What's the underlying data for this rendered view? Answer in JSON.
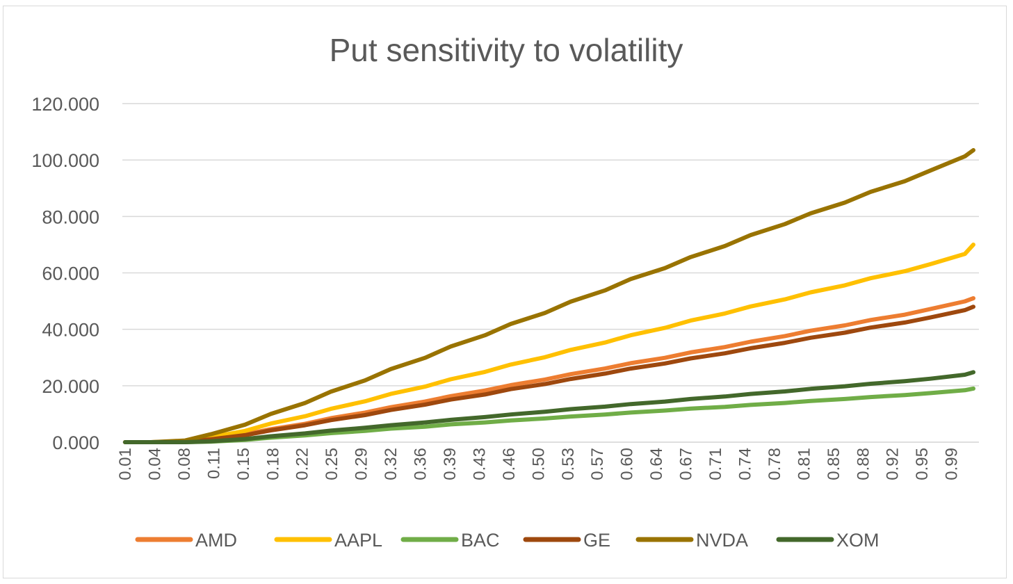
{
  "chart_data": {
    "type": "line",
    "title": "Put sensitivity to volatility",
    "xlabel": "",
    "ylabel": "",
    "ylim": [
      0,
      120
    ],
    "y_ticks": [
      "0.000",
      "20.000",
      "40.000",
      "60.000",
      "80.000",
      "100.000",
      "120.000"
    ],
    "y_tick_values": [
      0,
      20,
      40,
      60,
      80,
      100,
      120
    ],
    "x_ticks": [
      "0.01",
      "0.04",
      "0.08",
      "0.11",
      "0.15",
      "0.18",
      "0.22",
      "0.25",
      "0.29",
      "0.32",
      "0.36",
      "0.39",
      "0.43",
      "0.46",
      "0.50",
      "0.53",
      "0.57",
      "0.60",
      "0.64",
      "0.67",
      "0.71",
      "0.74",
      "0.78",
      "0.81",
      "0.85",
      "0.88",
      "0.92",
      "0.95",
      "0.99"
    ],
    "grid": "horizontal",
    "legend_position": "bottom",
    "x": [
      0.01,
      0.04,
      0.08,
      0.11,
      0.15,
      0.18,
      0.22,
      0.25,
      0.29,
      0.32,
      0.36,
      0.39,
      0.43,
      0.46,
      0.5,
      0.53,
      0.57,
      0.6,
      0.64,
      0.67,
      0.71,
      0.74,
      0.78,
      0.81,
      0.85,
      0.88,
      0.92,
      0.95,
      0.99,
      1.0
    ],
    "series": [
      {
        "name": "AMD",
        "color": "#ED7D31",
        "values": [
          0,
          0,
          0.1,
          1.2,
          2.8,
          4.6,
          6.5,
          8.5,
          10.5,
          12.4,
          14.4,
          16.3,
          18.3,
          20.2,
          22.2,
          24.1,
          26.1,
          28.0,
          29.9,
          31.8,
          33.7,
          35.6,
          37.6,
          39.5,
          41.4,
          43.3,
          45.2,
          47.2,
          49.9,
          51.0
        ]
      },
      {
        "name": "AAPL",
        "color": "#FFC000",
        "values": [
          0,
          0,
          0.3,
          1.8,
          4.0,
          6.6,
          9.2,
          11.8,
          14.5,
          17.1,
          19.7,
          22.3,
          24.9,
          27.5,
          30.1,
          32.7,
          35.3,
          37.9,
          40.5,
          43.1,
          45.6,
          48.1,
          50.6,
          53.1,
          55.6,
          58.1,
          60.6,
          63.1,
          66.7,
          70.0
        ]
      },
      {
        "name": "BAC",
        "color": "#70AD47",
        "values": [
          0,
          0,
          0,
          0.2,
          0.8,
          1.6,
          2.4,
          3.2,
          4.0,
          4.8,
          5.5,
          6.3,
          7.0,
          7.7,
          8.4,
          9.1,
          9.8,
          10.5,
          11.2,
          11.9,
          12.5,
          13.2,
          13.9,
          14.6,
          15.3,
          16.0,
          16.7,
          17.4,
          18.4,
          19.0
        ]
      },
      {
        "name": "GE",
        "color": "#9E480E",
        "values": [
          0,
          0,
          0.1,
          1.0,
          2.5,
          4.2,
          6.0,
          7.8,
          9.6,
          11.4,
          13.3,
          15.1,
          16.9,
          18.8,
          20.6,
          22.4,
          24.3,
          26.1,
          27.9,
          29.7,
          31.5,
          33.3,
          35.2,
          37.0,
          38.8,
          40.6,
          42.4,
          44.2,
          46.8,
          48.0
        ]
      },
      {
        "name": "NVDA",
        "color": "#997300",
        "values": [
          0,
          0,
          0.6,
          2.8,
          6.2,
          10.0,
          13.9,
          17.9,
          21.9,
          25.9,
          29.9,
          33.9,
          37.9,
          41.9,
          45.8,
          49.8,
          53.8,
          57.8,
          61.7,
          65.6,
          69.5,
          73.4,
          77.3,
          81.1,
          84.9,
          88.7,
          92.5,
          96.3,
          101.3,
          103.5
        ]
      },
      {
        "name": "XOM",
        "color": "#43682B",
        "values": [
          0,
          0,
          0,
          0.3,
          1.1,
          2.1,
          3.1,
          4.1,
          5.1,
          6.0,
          7.0,
          7.9,
          8.9,
          9.8,
          10.8,
          11.7,
          12.6,
          13.5,
          14.4,
          15.3,
          16.2,
          17.1,
          18.0,
          18.9,
          19.8,
          20.7,
          21.6,
          22.5,
          23.9,
          24.8
        ]
      }
    ]
  }
}
